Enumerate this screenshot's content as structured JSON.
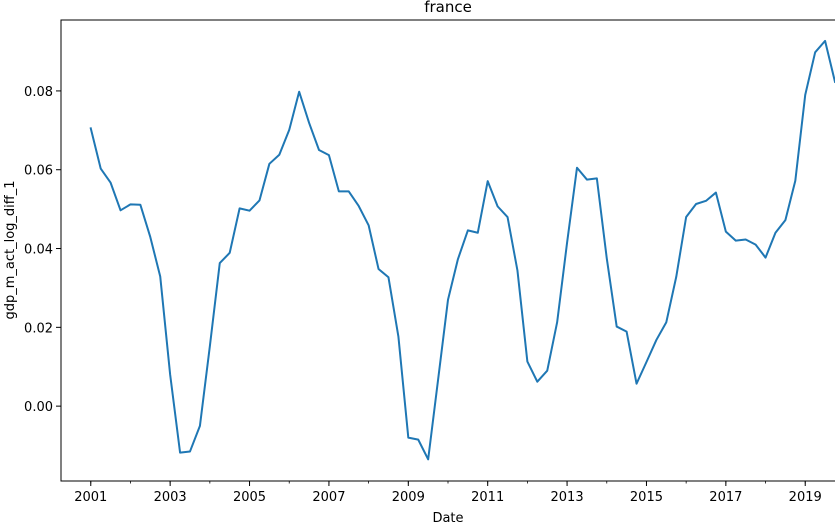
{
  "chart_data": {
    "type": "line",
    "title": "france",
    "xlabel": "Date",
    "ylabel": "gdp_m_act_log_diff_1",
    "x_tick_labels": [
      "2001",
      "2003",
      "2005",
      "2007",
      "2009",
      "2011",
      "2013",
      "2015",
      "2017",
      "2019"
    ],
    "y_tick_labels": [
      "0.00",
      "0.02",
      "0.04",
      "0.06",
      "0.08"
    ],
    "y_ticks": [
      0.0,
      0.02,
      0.04,
      0.06,
      0.08
    ],
    "xlim": [
      "2000-04",
      "2019-10"
    ],
    "ylim": [
      -0.019,
      0.098
    ],
    "grid": false,
    "series": [
      {
        "color": "#1f77b4",
        "points": [
          [
            "2001-01",
            0.0705
          ],
          [
            "2001-04",
            0.0603
          ],
          [
            "2001-07",
            0.0567
          ],
          [
            "2001-10",
            0.0497
          ],
          [
            "2002-01",
            0.0512
          ],
          [
            "2002-04",
            0.0511
          ],
          [
            "2002-07",
            0.0429
          ],
          [
            "2002-10",
            0.0329
          ],
          [
            "2003-01",
            0.008
          ],
          [
            "2003-04",
            -0.0118
          ],
          [
            "2003-07",
            -0.0115
          ],
          [
            "2003-10",
            -0.005
          ],
          [
            "2004-01",
            0.0152
          ],
          [
            "2004-04",
            0.0363
          ],
          [
            "2004-07",
            0.0389
          ],
          [
            "2004-10",
            0.0502
          ],
          [
            "2005-01",
            0.0496
          ],
          [
            "2005-04",
            0.0522
          ],
          [
            "2005-07",
            0.0615
          ],
          [
            "2005-10",
            0.0638
          ],
          [
            "2006-01",
            0.0701
          ],
          [
            "2006-04",
            0.0798
          ],
          [
            "2006-07",
            0.0719
          ],
          [
            "2006-10",
            0.065
          ],
          [
            "2007-01",
            0.0637
          ],
          [
            "2007-04",
            0.0545
          ],
          [
            "2007-07",
            0.0545
          ],
          [
            "2007-10",
            0.0508
          ],
          [
            "2008-01",
            0.0459
          ],
          [
            "2008-04",
            0.0348
          ],
          [
            "2008-07",
            0.0327
          ],
          [
            "2008-10",
            0.0177
          ],
          [
            "2009-01",
            -0.008
          ],
          [
            "2009-04",
            -0.0085
          ],
          [
            "2009-07",
            -0.0135
          ],
          [
            "2009-10",
            0.0067
          ],
          [
            "2010-01",
            0.027
          ],
          [
            "2010-04",
            0.0373
          ],
          [
            "2010-07",
            0.0446
          ],
          [
            "2010-10",
            0.044
          ],
          [
            "2011-01",
            0.0571
          ],
          [
            "2011-04",
            0.0507
          ],
          [
            "2011-07",
            0.048
          ],
          [
            "2011-10",
            0.0344
          ],
          [
            "2012-01",
            0.0113
          ],
          [
            "2012-04",
            0.0062
          ],
          [
            "2012-07",
            0.009
          ],
          [
            "2012-10",
            0.0213
          ],
          [
            "2013-01",
            0.0415
          ],
          [
            "2013-04",
            0.0605
          ],
          [
            "2013-07",
            0.0575
          ],
          [
            "2013-10",
            0.0578
          ],
          [
            "2014-01",
            0.0375
          ],
          [
            "2014-04",
            0.0202
          ],
          [
            "2014-07",
            0.0189
          ],
          [
            "2014-10",
            0.0057
          ],
          [
            "2015-01",
            0.0112
          ],
          [
            "2015-04",
            0.0168
          ],
          [
            "2015-07",
            0.0213
          ],
          [
            "2015-10",
            0.0328
          ],
          [
            "2016-01",
            0.048
          ],
          [
            "2016-04",
            0.0513
          ],
          [
            "2016-07",
            0.0521
          ],
          [
            "2016-10",
            0.0542
          ],
          [
            "2017-01",
            0.0443
          ],
          [
            "2017-04",
            0.042
          ],
          [
            "2017-07",
            0.0423
          ],
          [
            "2017-10",
            0.041
          ],
          [
            "2018-01",
            0.0377
          ],
          [
            "2018-04",
            0.044
          ],
          [
            "2018-07",
            0.0472
          ],
          [
            "2018-10",
            0.0572
          ],
          [
            "2019-01",
            0.079
          ],
          [
            "2019-04",
            0.0898
          ],
          [
            "2019-07",
            0.0927
          ],
          [
            "2019-10",
            0.0823
          ]
        ]
      }
    ]
  }
}
